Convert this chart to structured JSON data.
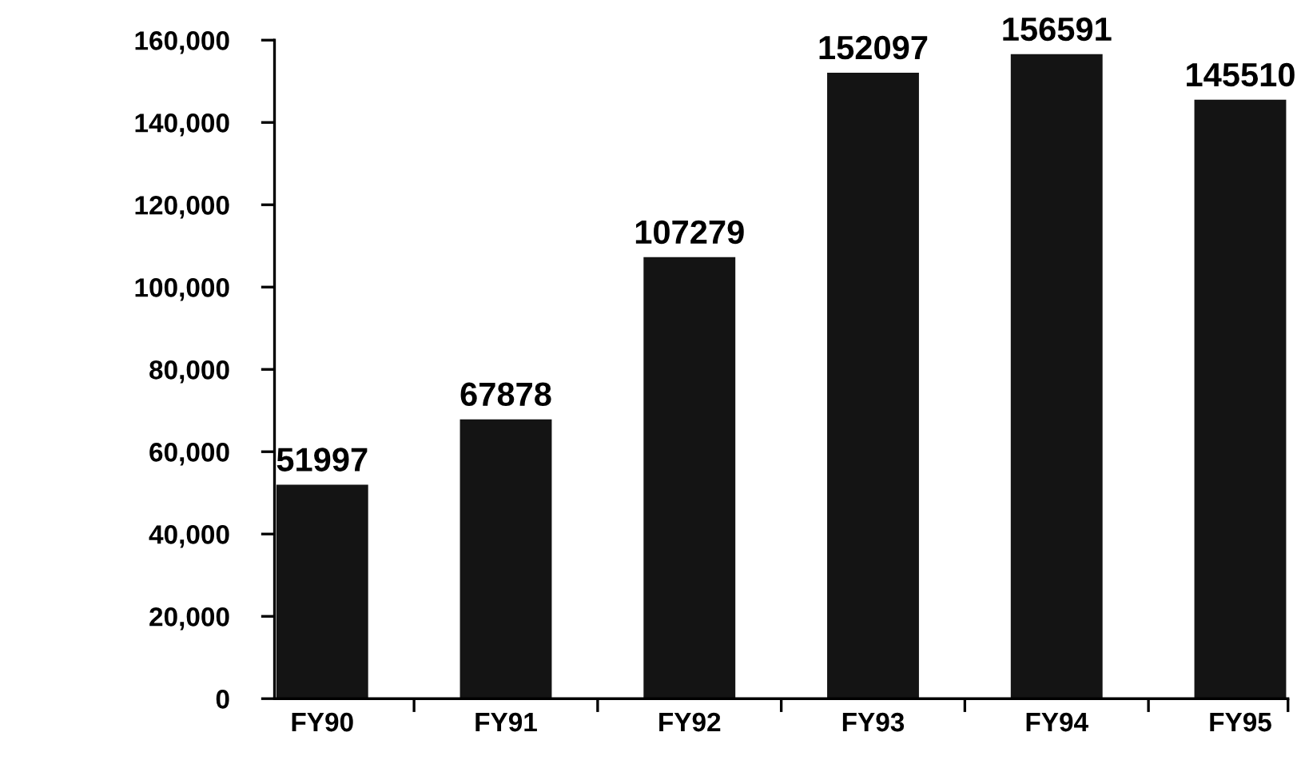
{
  "chart_data": {
    "type": "bar",
    "categories": [
      "FY90",
      "FY91",
      "FY92",
      "FY93",
      "FY94",
      "FY95"
    ],
    "values": [
      51997,
      67878,
      107279,
      152097,
      156591,
      145510
    ],
    "color": "#141414",
    "ylim": [
      0,
      160000
    ],
    "yticks": [
      {
        "value": 0,
        "label": "0"
      },
      {
        "value": 20000,
        "label": "20,000"
      },
      {
        "value": 40000,
        "label": "40,000"
      },
      {
        "value": 60000,
        "label": "60,000"
      },
      {
        "value": 80000,
        "label": "80,000"
      },
      {
        "value": 100000,
        "label": "100,000"
      },
      {
        "value": 120000,
        "label": "120,000"
      },
      {
        "value": 140000,
        "label": "140,000"
      },
      {
        "value": 160000,
        "label": "160,000"
      }
    ],
    "data_labels": true,
    "grid": false,
    "legend": false
  }
}
